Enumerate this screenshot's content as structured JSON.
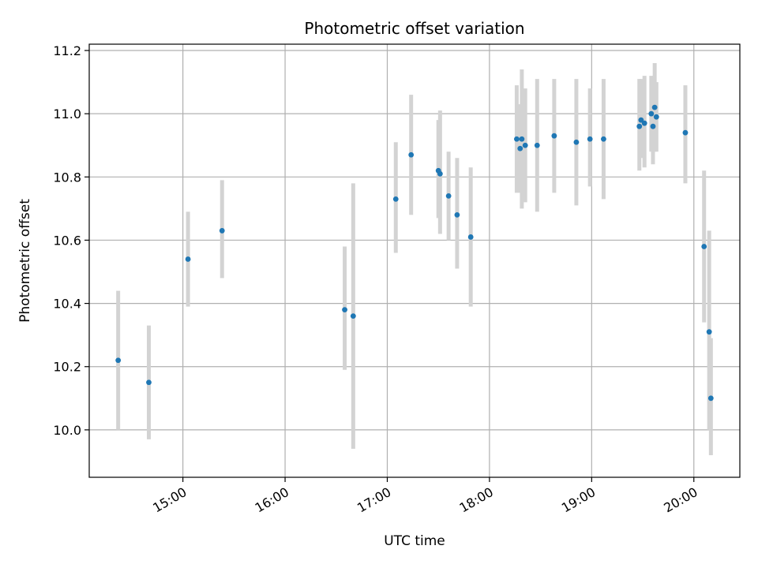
{
  "chart_data": {
    "type": "scatter",
    "title": "Photometric offset variation",
    "xlabel": "UTC time",
    "ylabel": "Photometric offset",
    "x_unit": "UTC time (HH:MM)",
    "xlim": [
      "14:05",
      "20:27"
    ],
    "ylim": [
      9.85,
      11.22
    ],
    "x_ticks": [
      "15:00",
      "16:00",
      "17:00",
      "18:00",
      "19:00",
      "20:00"
    ],
    "y_ticks": [
      "10.0",
      "10.2",
      "10.4",
      "10.6",
      "10.8",
      "11.0",
      "11.2"
    ],
    "grid": true,
    "legend": "none",
    "colors": {
      "point": "#1f77b4",
      "errorbar": "#d3d3d3",
      "grid": "#b0b0b0"
    },
    "points": [
      {
        "x": "14:22",
        "y": 10.22,
        "err_low": 10.0,
        "err_high": 10.44
      },
      {
        "x": "14:40",
        "y": 10.15,
        "err_low": 9.97,
        "err_high": 10.33
      },
      {
        "x": "15:03",
        "y": 10.54,
        "err_low": 10.39,
        "err_high": 10.69
      },
      {
        "x": "15:23",
        "y": 10.63,
        "err_low": 10.48,
        "err_high": 10.79
      },
      {
        "x": "16:35",
        "y": 10.38,
        "err_low": 10.19,
        "err_high": 10.58
      },
      {
        "x": "16:40",
        "y": 10.36,
        "err_low": 9.94,
        "err_high": 10.78
      },
      {
        "x": "17:05",
        "y": 10.73,
        "err_low": 10.56,
        "err_high": 10.91
      },
      {
        "x": "17:14",
        "y": 10.87,
        "err_low": 10.68,
        "err_high": 11.06
      },
      {
        "x": "17:30",
        "y": 10.82,
        "err_low": 10.67,
        "err_high": 10.98
      },
      {
        "x": "17:31",
        "y": 10.81,
        "err_low": 10.62,
        "err_high": 11.01
      },
      {
        "x": "17:36",
        "y": 10.74,
        "err_low": 10.6,
        "err_high": 10.88
      },
      {
        "x": "17:41",
        "y": 10.68,
        "err_low": 10.51,
        "err_high": 10.86
      },
      {
        "x": "17:49",
        "y": 10.61,
        "err_low": 10.39,
        "err_high": 10.83
      },
      {
        "x": "18:16",
        "y": 10.92,
        "err_low": 10.75,
        "err_high": 11.09
      },
      {
        "x": "18:18",
        "y": 10.89,
        "err_low": 10.75,
        "err_high": 11.03
      },
      {
        "x": "18:19",
        "y": 10.92,
        "err_low": 10.7,
        "err_high": 11.14
      },
      {
        "x": "18:21",
        "y": 10.9,
        "err_low": 10.72,
        "err_high": 11.08
      },
      {
        "x": "18:28",
        "y": 10.9,
        "err_low": 10.69,
        "err_high": 11.11
      },
      {
        "x": "18:38",
        "y": 10.93,
        "err_low": 10.75,
        "err_high": 11.11
      },
      {
        "x": "18:51",
        "y": 10.91,
        "err_low": 10.71,
        "err_high": 11.11
      },
      {
        "x": "18:59",
        "y": 10.92,
        "err_low": 10.77,
        "err_high": 11.08
      },
      {
        "x": "19:07",
        "y": 10.92,
        "err_low": 10.73,
        "err_high": 11.11
      },
      {
        "x": "19:28",
        "y": 10.96,
        "err_low": 10.82,
        "err_high": 11.11
      },
      {
        "x": "19:29",
        "y": 10.98,
        "err_low": 10.86,
        "err_high": 11.11
      },
      {
        "x": "19:31",
        "y": 10.97,
        "err_low": 10.83,
        "err_high": 11.12
      },
      {
        "x": "19:35",
        "y": 11.0,
        "err_low": 10.88,
        "err_high": 11.12
      },
      {
        "x": "19:36",
        "y": 10.96,
        "err_low": 10.84,
        "err_high": 11.07
      },
      {
        "x": "19:37",
        "y": 11.02,
        "err_low": 10.88,
        "err_high": 11.16
      },
      {
        "x": "19:38",
        "y": 10.99,
        "err_low": 10.88,
        "err_high": 11.1
      },
      {
        "x": "19:55",
        "y": 10.94,
        "err_low": 10.78,
        "err_high": 11.09
      },
      {
        "x": "20:06",
        "y": 10.58,
        "err_low": 10.34,
        "err_high": 10.82
      },
      {
        "x": "20:09",
        "y": 10.31,
        "err_low": 10.0,
        "err_high": 10.63
      },
      {
        "x": "20:10",
        "y": 10.1,
        "err_low": 9.92,
        "err_high": 10.29
      }
    ]
  }
}
